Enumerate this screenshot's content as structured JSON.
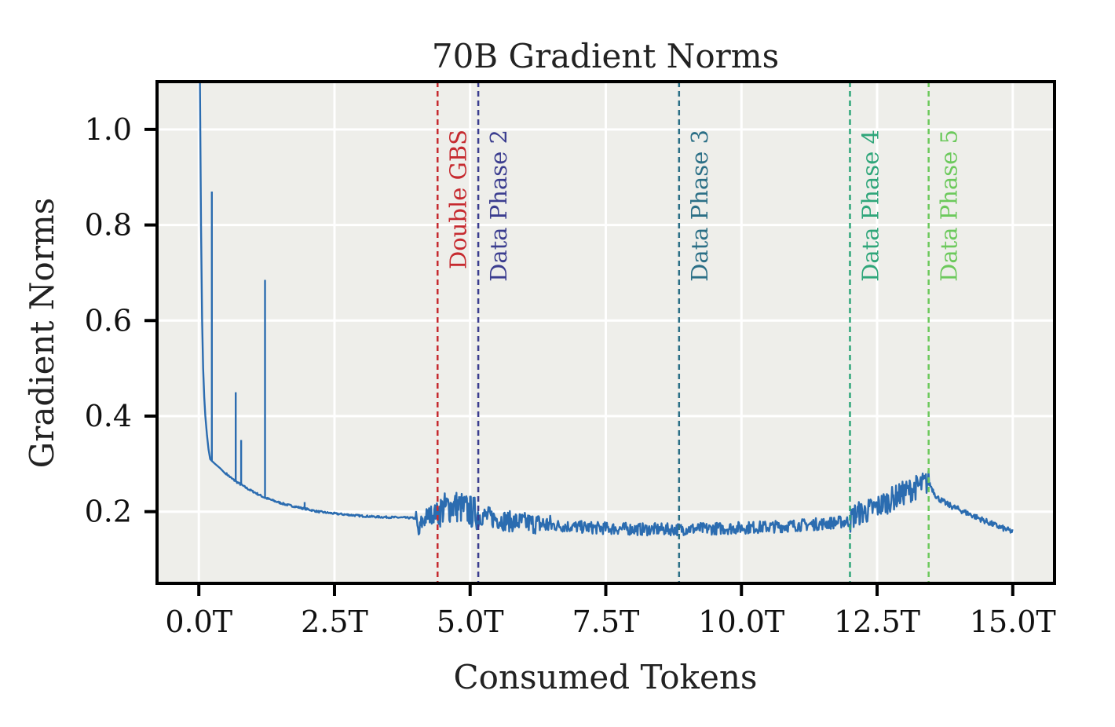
{
  "chart_data": {
    "type": "line",
    "title": "70B Gradient Norms",
    "xlabel": "Consumed Tokens",
    "ylabel": "Gradient Norms",
    "xlim": [
      -0.77,
      15.77
    ],
    "ylim": [
      0.05,
      1.1
    ],
    "xticks": [
      0,
      2.5,
      5,
      7.5,
      10,
      12.5,
      15
    ],
    "xtick_labels": [
      "0.0T",
      "2.5T",
      "5.0T",
      "7.5T",
      "10.0T",
      "12.5T",
      "15.0T"
    ],
    "yticks": [
      0.2,
      0.4,
      0.6,
      0.8,
      1.0
    ],
    "ytick_labels": [
      "0.2",
      "0.4",
      "0.6",
      "0.8",
      "1.0"
    ],
    "grid": true,
    "series": [
      {
        "name": "Gradient Norm",
        "color": "#2b6cb0",
        "x": [
          0.02,
          0.04,
          0.06,
          0.08,
          0.1,
          0.12,
          0.15,
          0.18,
          0.21,
          0.25,
          0.3,
          0.35,
          0.4,
          0.5,
          0.6,
          0.7,
          0.8,
          0.9,
          1.0,
          1.2,
          1.4,
          1.6,
          1.8,
          2.0,
          2.2,
          2.5,
          2.8,
          3.0,
          3.3,
          3.6,
          3.9,
          4.0,
          4.05,
          4.1,
          4.2,
          4.3,
          4.4,
          4.5,
          4.6,
          4.7,
          4.8,
          4.9,
          5.0,
          5.1,
          5.2,
          5.3,
          5.4,
          5.5,
          5.7,
          5.9,
          6.1,
          6.3,
          6.5,
          6.7,
          7.0,
          7.3,
          7.6,
          7.9,
          8.2,
          8.5,
          8.8,
          9.0,
          9.3,
          9.6,
          9.9,
          10.2,
          10.5,
          10.8,
          11.1,
          11.4,
          11.7,
          12.0,
          12.1,
          12.3,
          12.5,
          12.7,
          12.9,
          13.1,
          13.3,
          13.45,
          13.6,
          13.8,
          14.0,
          14.2,
          14.4,
          14.6,
          14.8,
          15.0
        ],
        "y": [
          1.1,
          0.8,
          0.6,
          0.5,
          0.44,
          0.4,
          0.36,
          0.33,
          0.31,
          0.305,
          0.3,
          0.295,
          0.29,
          0.28,
          0.27,
          0.262,
          0.255,
          0.248,
          0.242,
          0.23,
          0.222,
          0.215,
          0.21,
          0.205,
          0.2,
          0.196,
          0.193,
          0.191,
          0.189,
          0.188,
          0.187,
          0.186,
          0.15,
          0.175,
          0.19,
          0.195,
          0.2,
          0.205,
          0.21,
          0.212,
          0.21,
          0.205,
          0.2,
          0.197,
          0.193,
          0.19,
          0.187,
          0.185,
          0.18,
          0.178,
          0.176,
          0.174,
          0.172,
          0.17,
          0.168,
          0.166,
          0.165,
          0.164,
          0.163,
          0.163,
          0.163,
          0.164,
          0.164,
          0.165,
          0.166,
          0.167,
          0.168,
          0.17,
          0.172,
          0.174,
          0.177,
          0.18,
          0.195,
          0.2,
          0.21,
          0.222,
          0.234,
          0.245,
          0.255,
          0.262,
          0.23,
          0.215,
          0.205,
          0.195,
          0.185,
          0.175,
          0.166,
          0.158
        ],
        "spikes": [
          {
            "x": 0.24,
            "y": 0.87
          },
          {
            "x": 0.68,
            "y": 0.45
          },
          {
            "x": 0.78,
            "y": 0.35
          },
          {
            "x": 1.22,
            "y": 0.685
          },
          {
            "x": 1.95,
            "y": 0.22
          }
        ]
      }
    ],
    "vlines": [
      {
        "x": 4.4,
        "label": "Double GBS",
        "color": "#c62a2f"
      },
      {
        "x": 5.15,
        "label": "Data Phase 2",
        "color": "#3b3d8f"
      },
      {
        "x": 8.85,
        "label": "Data Phase 3",
        "color": "#2b6f86"
      },
      {
        "x": 12.0,
        "label": "Data Phase 4",
        "color": "#2fa67a"
      },
      {
        "x": 13.45,
        "label": "Data Phase 5",
        "color": "#6cc95c"
      }
    ],
    "colors": {
      "plot_background": "#eeeeea",
      "grid": "#ffffff",
      "axes": "#000000"
    }
  }
}
